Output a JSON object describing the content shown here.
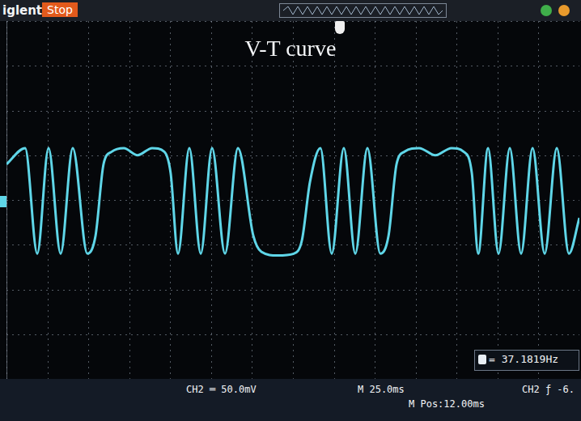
{
  "chart_data": {
    "type": "line",
    "title": "V-T curve",
    "x": [
      0,
      11.4,
      18.8,
      25.7,
      33.1,
      40.5,
      49.4,
      54.4,
      59.3,
      64.3,
      71.7,
      80.1,
      89.0,
      96.4,
      100.3,
      104.8,
      111.7,
      118.7,
      125.6,
      133.5,
      141.4,
      150.8,
      155.7,
      165.6,
      175.5,
      180.5,
      185.4,
      191.8,
      198.7,
      206.1,
      213.1,
      220.5,
      228.4,
      233.4,
      238.3,
      243.2,
      252.1,
      262.0,
      271.9,
      279.3,
      284.3,
      288.2,
      294.2,
      300.6,
      307.5,
      314.4,
      321.4,
      328.8,
      336.2,
      343.6,
      350.0
    ],
    "values": [
      40,
      58,
      -60,
      58,
      -60,
      58,
      -60,
      -40,
      40,
      54,
      58,
      50,
      58,
      54,
      30,
      -60,
      58,
      -60,
      58,
      -60,
      58,
      -40,
      -58,
      -62,
      -60,
      -45,
      20,
      58,
      -60,
      58,
      -60,
      58,
      -60,
      -40,
      40,
      54,
      58,
      50,
      58,
      54,
      30,
      -60,
      58,
      -60,
      58,
      -60,
      58,
      -60,
      58,
      -60,
      -20
    ],
    "color": "#5fd6e8",
    "xlim": [
      0,
      350
    ],
    "xticks": [
      0,
      25,
      50,
      75,
      100,
      125,
      150,
      175,
      200,
      225,
      250,
      275,
      300,
      325,
      350
    ],
    "ylim": [
      -200,
      200
    ],
    "yticks": [
      -200,
      -150,
      -100,
      -50,
      0,
      50,
      100,
      150,
      200
    ],
    "grid": true,
    "tick_labels": false,
    "annotations": [
      "iglent",
      "Stop",
      "= 37.1819Hz",
      "CH2 ═ 50.0mV",
      "M 25.0ms",
      "M Pos:12.00ms",
      "CH2 ƒ -6."
    ]
  }
}
